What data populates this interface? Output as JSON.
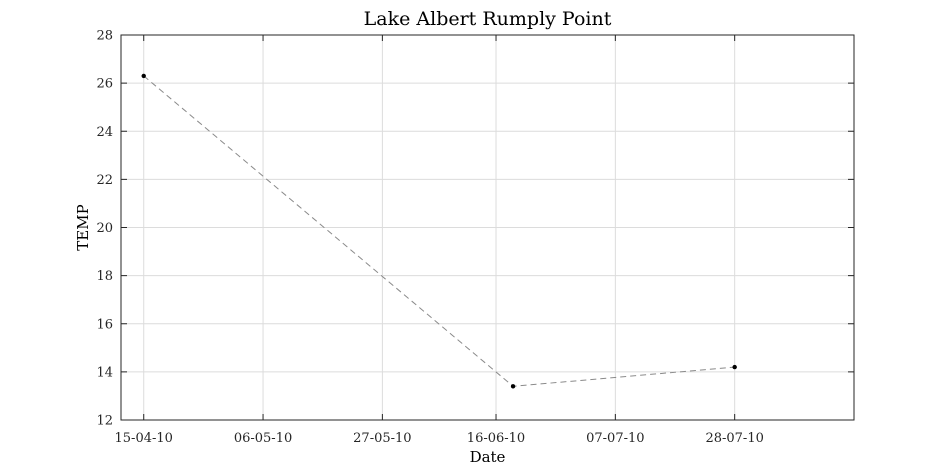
{
  "chart_data": {
    "type": "line",
    "title": "Lake Albert Rumply Point",
    "xlabel": "Date",
    "ylabel": "TEMP",
    "x_type": "date",
    "xlim": [
      "2010-04-11",
      "2010-08-18"
    ],
    "ylim": [
      12,
      28
    ],
    "x_ticks": [
      {
        "date": "2010-04-15",
        "label": "15-04-10"
      },
      {
        "date": "2010-05-06",
        "label": "06-05-10"
      },
      {
        "date": "2010-05-27",
        "label": "27-05-10"
      },
      {
        "date": "2010-06-16",
        "label": "16-06-10"
      },
      {
        "date": "2010-07-07",
        "label": "07-07-10"
      },
      {
        "date": "2010-07-28",
        "label": "28-07-10"
      }
    ],
    "y_ticks": [
      12,
      14,
      16,
      18,
      20,
      22,
      24,
      26,
      28
    ],
    "grid": true,
    "series": [
      {
        "points": [
          {
            "x": "2010-04-15",
            "y": 26.3
          },
          {
            "x": "2010-06-19",
            "y": 13.4
          },
          {
            "x": "2010-07-28",
            "y": 14.2
          }
        ],
        "line_style": "dashed",
        "line_color": "#8a8a8a",
        "marker_color": "#000000"
      }
    ]
  }
}
